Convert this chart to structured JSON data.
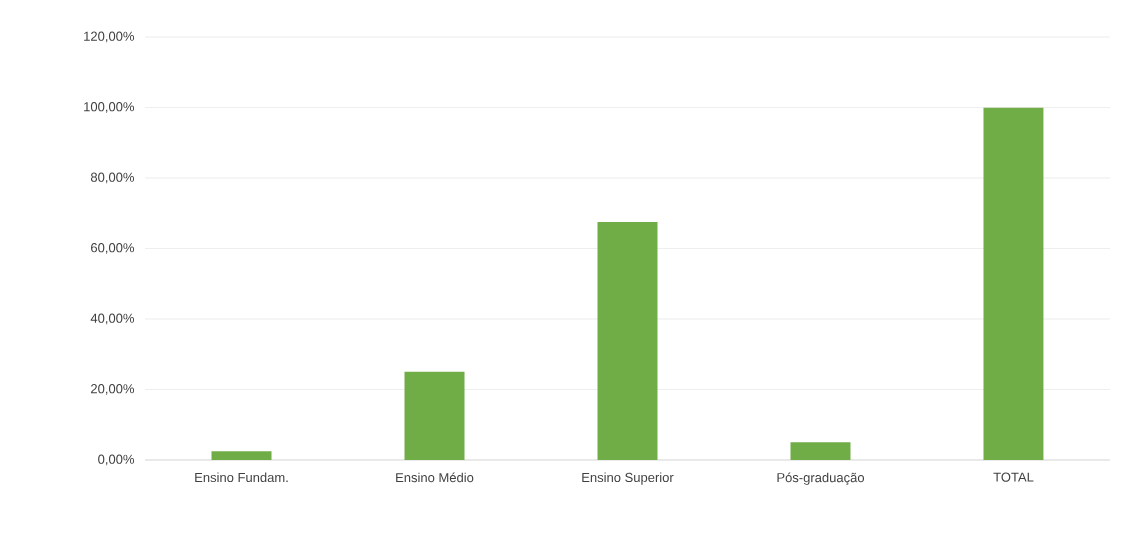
{
  "chart_data": {
    "type": "bar",
    "categories": [
      "Ensino Fundam.",
      "Ensino Médio",
      "Ensino Superior",
      "Pós-graduação",
      "TOTAL"
    ],
    "values": [
      2.5,
      25,
      67.5,
      5,
      100
    ],
    "color": "#70ad47",
    "ylim": [
      0,
      120
    ],
    "yticks": [
      {
        "value": 0,
        "label": "0,00%"
      },
      {
        "value": 20,
        "label": "20,00%"
      },
      {
        "value": 40,
        "label": "40,00%"
      },
      {
        "value": 60,
        "label": "60,00%"
      },
      {
        "value": 80,
        "label": "80,00%"
      },
      {
        "value": 100,
        "label": "100,00%"
      },
      {
        "value": 120,
        "label": "120,00%"
      }
    ],
    "grid": "y"
  }
}
